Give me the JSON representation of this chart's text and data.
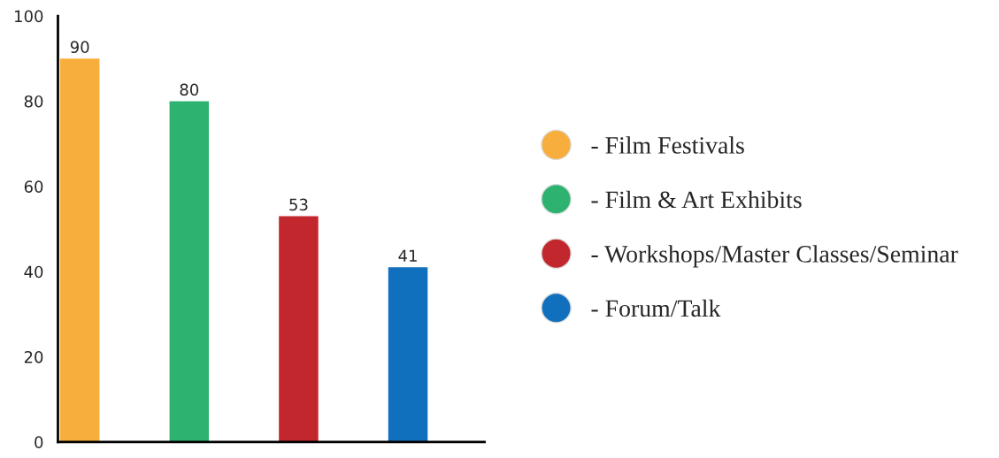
{
  "chart_data": {
    "type": "bar",
    "categories": [
      null,
      null,
      null,
      null
    ],
    "series": [
      {
        "name": "- Film Festivals",
        "color": "#f8ae3c",
        "values": [
          90,
          null,
          null,
          null
        ]
      },
      {
        "name": "- Film & Art Exhibits",
        "color": "#2db36f",
        "values": [
          null,
          80,
          null,
          null
        ]
      },
      {
        "name": "- Workshops/Master Classes/Seminar",
        "color": "#c1272d",
        "values": [
          null,
          null,
          53,
          null
        ]
      },
      {
        "name": "- Forum/Talk",
        "color": "#1170be",
        "values": [
          null,
          null,
          null,
          41
        ]
      }
    ],
    "ylim": [
      0,
      100
    ],
    "yticks": [
      0,
      20,
      40,
      60,
      80,
      100
    ],
    "data_labels": true,
    "grid": false,
    "legend": "right",
    "tick_labels": "y"
  }
}
